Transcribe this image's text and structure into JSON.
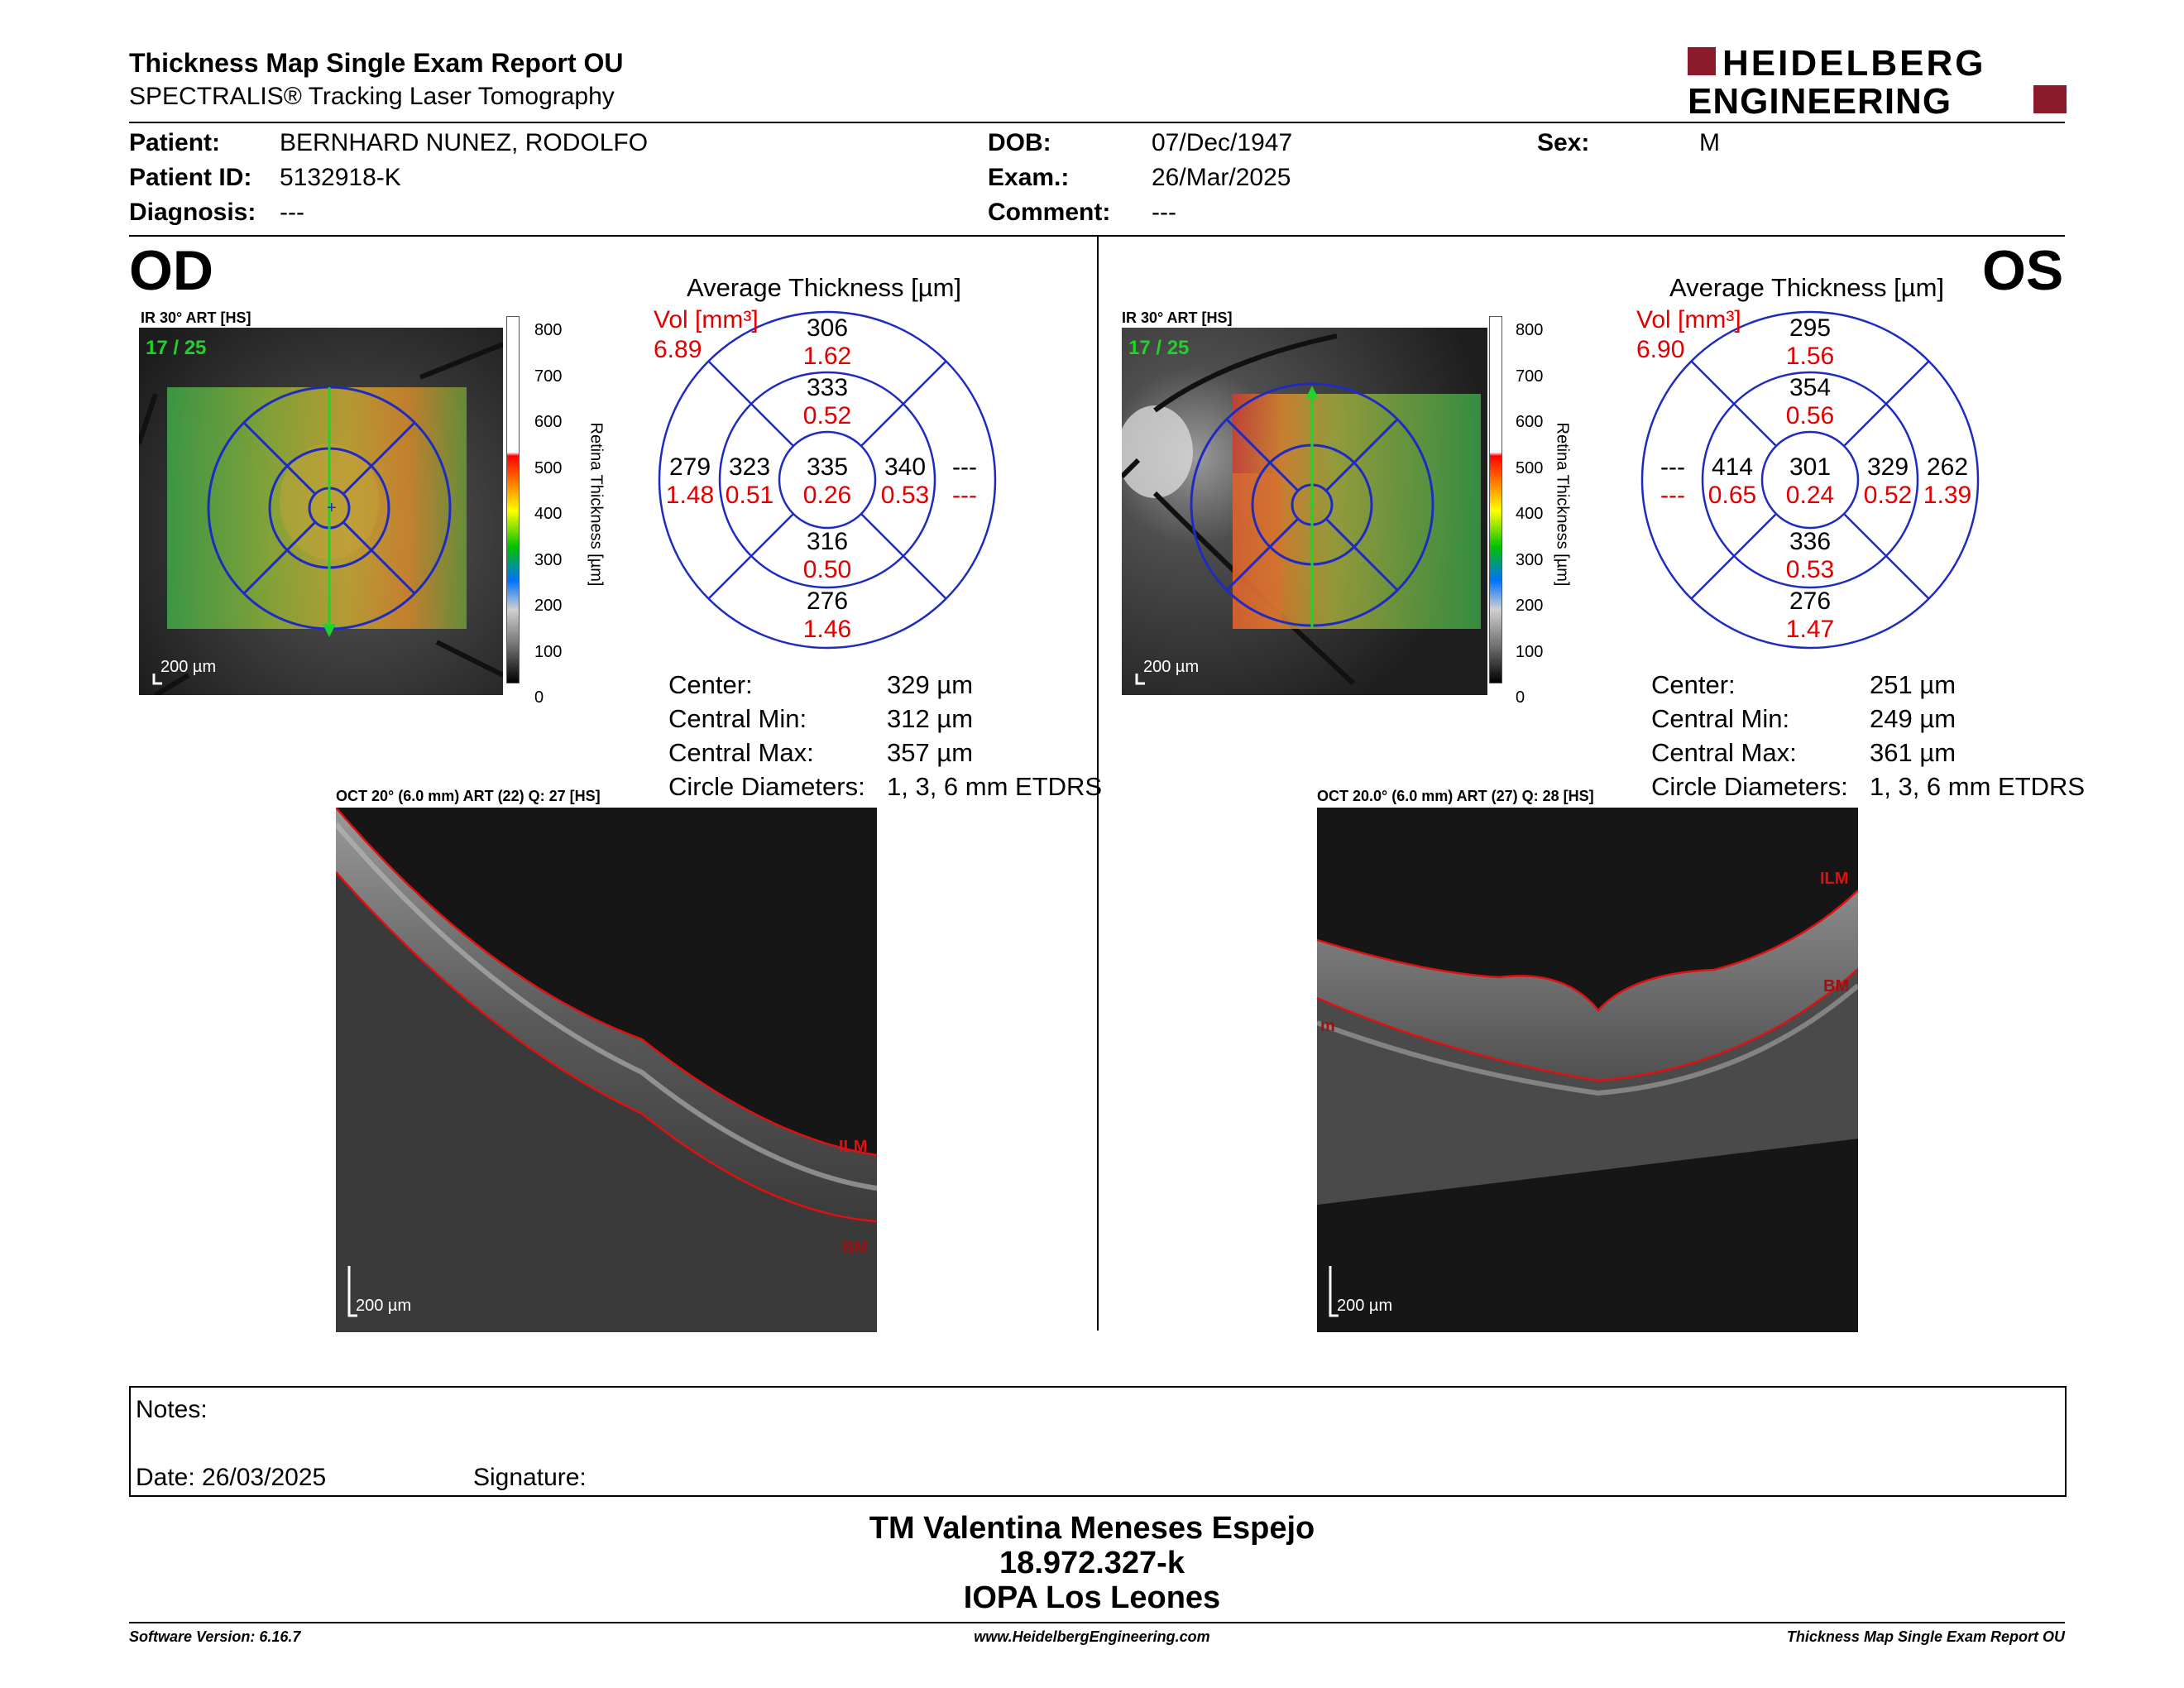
{
  "header": {
    "title": "Thickness Map Single Exam Report OU",
    "subtitle": "SPECTRALIS® Tracking Laser Tomography",
    "logo_line1": "HEIDELBERG",
    "logo_line2": "ENGINEERING",
    "logo_color": "#8b1a2b"
  },
  "patient": {
    "patient_label": "Patient:",
    "patient_value": "BERNHARD NUNEZ, RODOLFO",
    "id_label": "Patient ID:",
    "id_value": "5132918-K",
    "diag_label": "Diagnosis:",
    "diag_value": "---",
    "dob_label": "DOB:",
    "dob_value": "07/Dec/1947",
    "exam_label": "Exam.:",
    "exam_value": "26/Mar/2025",
    "comment_label": "Comment:",
    "comment_value": "---",
    "sex_label": "Sex:",
    "sex_value": "M"
  },
  "colorbar": {
    "ticks": [
      "800",
      "700",
      "600",
      "500",
      "400",
      "300",
      "200",
      "100",
      "0"
    ],
    "label": "Retina Thickness [µm]"
  },
  "od": {
    "eye": "OD",
    "ir_label": "IR 30° ART [HS]",
    "frame": "17 / 25",
    "scale": "200 µm",
    "avg_title": "Average Thickness [µm]",
    "vol_label": "Vol [mm³]",
    "vol_value": "6.89",
    "grid": {
      "center_t": "335",
      "center_v": "0.26",
      "inner_sup_t": "333",
      "inner_sup_v": "0.52",
      "inner_inf_t": "316",
      "inner_inf_v": "0.50",
      "inner_nas_t": "323",
      "inner_nas_v": "0.51",
      "inner_tem_t": "340",
      "inner_tem_v": "0.53",
      "outer_sup_t": "306",
      "outer_sup_v": "1.62",
      "outer_inf_t": "276",
      "outer_inf_v": "1.46",
      "outer_left_t": "279",
      "outer_left_v": "1.48",
      "outer_right_t": "---",
      "outer_right_v": "---"
    },
    "stats": {
      "center_label": "Center:",
      "center_value": "329 µm",
      "min_label": "Central Min:",
      "min_value": "312 µm",
      "max_label": "Central Max:",
      "max_value": "357 µm",
      "circ_label": "Circle Diameters:",
      "circ_value": "1, 3, 6 mm ETDRS"
    },
    "oct_label": "OCT 20° (6.0 mm) ART (22) Q: 27 [HS]",
    "ilm": "ILM",
    "bm": "BM",
    "oct_scale": "200 µm"
  },
  "os": {
    "eye": "OS",
    "ir_label": "IR 30° ART [HS]",
    "frame": "17 / 25",
    "scale": "200 µm",
    "avg_title": "Average Thickness [µm]",
    "vol_label": "Vol [mm³]",
    "vol_value": "6.90",
    "grid": {
      "center_t": "301",
      "center_v": "0.24",
      "inner_sup_t": "354",
      "inner_sup_v": "0.56",
      "inner_inf_t": "336",
      "inner_inf_v": "0.53",
      "inner_left_t": "414",
      "inner_left_v": "0.65",
      "inner_right_t": "329",
      "inner_right_v": "0.52",
      "outer_sup_t": "295",
      "outer_sup_v": "1.56",
      "outer_inf_t": "276",
      "outer_inf_v": "1.47",
      "outer_left_t": "---",
      "outer_left_v": "---",
      "outer_right_t": "262",
      "outer_right_v": "1.39"
    },
    "stats": {
      "center_label": "Center:",
      "center_value": "251 µm",
      "min_label": "Central Min:",
      "min_value": "249 µm",
      "max_label": "Central Max:",
      "max_value": "361 µm",
      "circ_label": "Circle Diameters:",
      "circ_value": "1, 3, 6 mm ETDRS"
    },
    "oct_label": "OCT 20.0° (6.0 mm) ART (27) Q: 28 [HS]",
    "ilm": "ILM",
    "bm": "BM",
    "m_label": "m",
    "oct_scale": "200 µm"
  },
  "notes": {
    "notes_label": "Notes:",
    "date_label": "Date: 26/03/2025",
    "signature_label": "Signature:"
  },
  "signoff": {
    "line1": "TM Valentina Meneses Espejo",
    "line2": "18.972.327-k",
    "line3": "IOPA Los Leones"
  },
  "footer": {
    "left": "Software Version: 6.16.7",
    "center": "www.HeidelbergEngineering.com",
    "right": "Thickness Map Single Exam Report OU"
  }
}
